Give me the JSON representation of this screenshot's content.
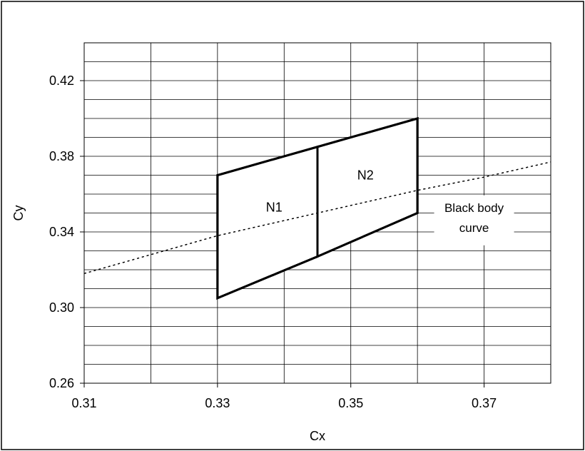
{
  "chart_data": {
    "type": "line",
    "xlabel": "Cx",
    "ylabel": "Cy",
    "xlim": [
      0.31,
      0.38
    ],
    "ylim": [
      0.26,
      0.44
    ],
    "x_ticks": [
      0.31,
      0.33,
      0.35,
      0.37
    ],
    "x_tick_labels": [
      "0.31",
      "0.33",
      "0.35",
      "0.37"
    ],
    "y_ticks": [
      0.26,
      0.3,
      0.34,
      0.38,
      0.42
    ],
    "y_tick_labels": [
      "0.26",
      "0.30",
      "0.34",
      "0.38",
      "0.42"
    ],
    "grid": {
      "vertical_step": 0.01,
      "horizontal_step": 0.01
    },
    "regions": [
      {
        "label": "N1",
        "points": [
          [
            0.33,
            0.305
          ],
          [
            0.33,
            0.37
          ],
          [
            0.345,
            0.385
          ],
          [
            0.345,
            0.327
          ]
        ]
      },
      {
        "label": "N2",
        "points": [
          [
            0.345,
            0.327
          ],
          [
            0.345,
            0.385
          ],
          [
            0.36,
            0.4
          ],
          [
            0.36,
            0.35
          ]
        ]
      }
    ],
    "region_label_positions": {
      "N1": [
        0.3385,
        0.353
      ],
      "N2": [
        0.3522,
        0.37
      ]
    },
    "black_body_curve": {
      "line_1": "Black body",
      "line_2": "curve",
      "style": "dotted",
      "points": [
        [
          0.31,
          0.318
        ],
        [
          0.32,
          0.328
        ],
        [
          0.33,
          0.338
        ],
        [
          0.34,
          0.346
        ],
        [
          0.35,
          0.354
        ],
        [
          0.36,
          0.362
        ],
        [
          0.37,
          0.369
        ],
        [
          0.38,
          0.377
        ]
      ]
    },
    "annotation_position": [
      0.3685,
      0.345
    ]
  }
}
